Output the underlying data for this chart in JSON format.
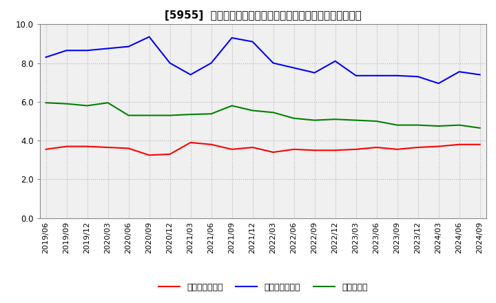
{
  "title": "[5955]  売上債権回転率、買入債務回転率、在庫回転率の推移",
  "x_labels": [
    "2019/06",
    "2019/09",
    "2019/12",
    "2020/03",
    "2020/06",
    "2020/09",
    "2020/12",
    "2021/03",
    "2021/06",
    "2021/09",
    "2021/12",
    "2022/03",
    "2022/06",
    "2022/09",
    "2022/12",
    "2023/03",
    "2023/06",
    "2023/09",
    "2023/12",
    "2024/03",
    "2024/06",
    "2024/09"
  ],
  "receivables_turnover": [
    3.55,
    3.7,
    3.7,
    3.65,
    3.6,
    3.25,
    3.3,
    3.9,
    3.8,
    3.55,
    3.65,
    3.4,
    3.55,
    3.5,
    3.5,
    3.55,
    3.65,
    3.55,
    3.65,
    3.7,
    3.8,
    3.8
  ],
  "payables_turnover": [
    8.3,
    8.65,
    8.65,
    8.75,
    8.85,
    9.35,
    8.0,
    7.4,
    8.0,
    9.3,
    9.1,
    8.0,
    7.75,
    7.5,
    8.1,
    7.35,
    7.35,
    7.35,
    7.3,
    6.95,
    7.55,
    7.4
  ],
  "inventory_turnover": [
    5.95,
    5.9,
    5.8,
    5.95,
    5.3,
    5.3,
    5.3,
    5.35,
    5.38,
    5.8,
    5.55,
    5.45,
    5.15,
    5.05,
    5.1,
    5.05,
    5.0,
    4.8,
    4.8,
    4.75,
    4.8,
    4.65
  ],
  "receivables_color": "#ff0000",
  "payables_color": "#0000ff",
  "inventory_color": "#008000",
  "ylim": [
    0.0,
    10.0
  ],
  "yticks": [
    0.0,
    2.0,
    4.0,
    6.0,
    8.0,
    10.0
  ],
  "legend_labels": [
    "売上債権回転率",
    "買入債務回転率",
    "在庫回転率"
  ],
  "background_color": "#ffffff",
  "plot_bg_color": "#f0f0f0",
  "grid_color": "#aaaaaa",
  "line_width": 1.5,
  "figsize": [
    7.2,
    4.4
  ],
  "dpi": 100,
  "title_fontsize": 11,
  "tick_fontsize": 8,
  "legend_fontsize": 9
}
